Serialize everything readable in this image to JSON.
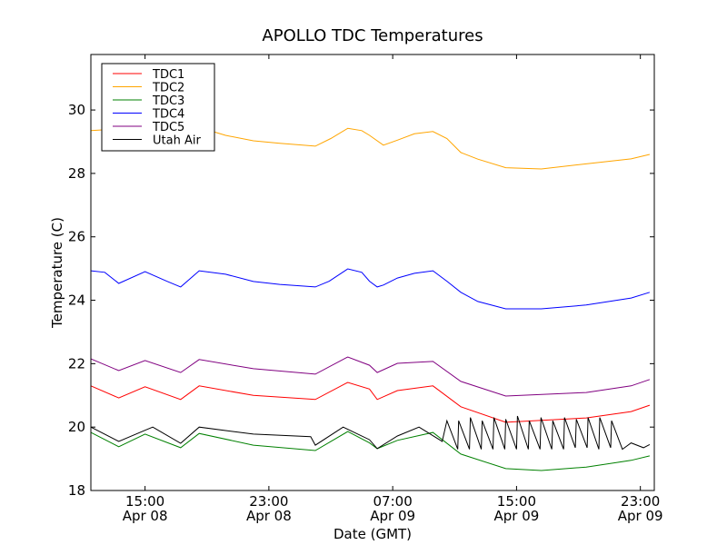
{
  "chart_data": {
    "type": "line",
    "title": "APOLLO TDC Temperatures",
    "xlabel": "Date (GMT)",
    "ylabel": "Temperature (C)",
    "x_units": "hours since Apr 08 00:00 GMT",
    "xlim": [
      11.5,
      47.9
    ],
    "ylim": [
      18,
      31.75
    ],
    "grid": false,
    "legend_position": "top-left",
    "xticks": [
      {
        "value": 15,
        "time": "15:00",
        "date": "Apr 08"
      },
      {
        "value": 23,
        "time": "23:00",
        "date": "Apr 08"
      },
      {
        "value": 31,
        "time": "07:00",
        "date": "Apr 09"
      },
      {
        "value": 39,
        "time": "15:00",
        "date": "Apr 09"
      },
      {
        "value": 47,
        "time": "23:00",
        "date": "Apr 09"
      }
    ],
    "yticks": [
      18,
      20,
      22,
      24,
      26,
      28,
      30
    ],
    "series": [
      {
        "name": "TDC1",
        "color": "#ff0000",
        "x": [
          11.5,
          13.3,
          15,
          17.3,
          18.5,
          22,
          26,
          28.1,
          29.5,
          30,
          31.3,
          33.6,
          35.4,
          38.3,
          43.5,
          46.4,
          47.6
        ],
        "y": [
          21.3,
          20.92,
          21.27,
          20.87,
          21.3,
          21.0,
          20.87,
          21.41,
          21.2,
          20.87,
          21.15,
          21.3,
          20.64,
          20.15,
          20.29,
          20.49,
          20.69
        ]
      },
      {
        "name": "TDC2",
        "color": "#ffa500",
        "x": [
          11.5,
          13.3,
          15,
          17.3,
          18.5,
          20.2,
          22,
          23.7,
          26,
          27,
          28.1,
          29,
          29.5,
          30.4,
          31.3,
          32.4,
          33.6,
          34.5,
          35.4,
          36.5,
          38.3,
          40.6,
          43.5,
          46.4,
          47.6
        ],
        "y": [
          29.35,
          29.4,
          29.5,
          29.5,
          29.45,
          29.2,
          29.03,
          28.95,
          28.86,
          29.1,
          29.42,
          29.35,
          29.2,
          28.89,
          29.05,
          29.25,
          29.32,
          29.1,
          28.66,
          28.45,
          28.18,
          28.14,
          28.3,
          28.46,
          28.6
        ]
      },
      {
        "name": "TDC3",
        "color": "#008000",
        "x": [
          11.5,
          13.3,
          15,
          17.3,
          18.5,
          22,
          26,
          28.1,
          29.5,
          30,
          31.3,
          33.6,
          35.4,
          38.3,
          40.6,
          43.5,
          46.4,
          47.6
        ],
        "y": [
          19.83,
          19.38,
          19.78,
          19.35,
          19.8,
          19.43,
          19.26,
          19.86,
          19.5,
          19.32,
          19.58,
          19.83,
          19.15,
          18.69,
          18.63,
          18.74,
          18.95,
          19.09
        ]
      },
      {
        "name": "TDC4",
        "color": "#0000ff",
        "x": [
          11.5,
          12.4,
          13.3,
          15,
          16.4,
          17.3,
          18.5,
          20.2,
          22,
          23.7,
          26,
          26.9,
          28.1,
          29,
          29.5,
          30,
          30.4,
          31.3,
          32.4,
          33.6,
          34.5,
          35.4,
          36.5,
          38.3,
          40.6,
          43.5,
          46.4,
          47.6
        ],
        "y": [
          24.93,
          24.88,
          24.53,
          24.9,
          24.6,
          24.42,
          24.93,
          24.82,
          24.59,
          24.5,
          24.42,
          24.6,
          24.99,
          24.88,
          24.6,
          24.42,
          24.48,
          24.7,
          24.85,
          24.93,
          24.6,
          24.25,
          23.96,
          23.73,
          23.73,
          23.85,
          24.07,
          24.25
        ]
      },
      {
        "name": "TDC5",
        "color": "#800080",
        "x": [
          11.5,
          13.3,
          15,
          17.3,
          18.5,
          22,
          26,
          28.1,
          29.5,
          30,
          31.3,
          33.6,
          35.4,
          38.3,
          43.5,
          46.4,
          47.6
        ],
        "y": [
          22.15,
          21.78,
          22.1,
          21.72,
          22.13,
          21.84,
          21.67,
          22.21,
          21.95,
          21.72,
          22.01,
          22.07,
          21.44,
          20.98,
          21.09,
          21.3,
          21.5
        ]
      },
      {
        "name": "Utah Air",
        "color": "#000000",
        "x": [
          11.5,
          13.3,
          15,
          15.5,
          17.3,
          18.5,
          22,
          25.7,
          26,
          27.8,
          29.5,
          30,
          31.3,
          32.7,
          34.2,
          34.5,
          35.2,
          35.26,
          35.96,
          36.02,
          36.72,
          36.78,
          37.48,
          37.54,
          38.24,
          38.3,
          39.0,
          39.06,
          39.76,
          39.82,
          40.52,
          40.58,
          41.28,
          41.34,
          42.04,
          42.1,
          42.8,
          42.86,
          43.56,
          43.62,
          44.32,
          44.38,
          45.08,
          45.14,
          45.84,
          46.4,
          47.2,
          47.6
        ],
        "y": [
          20.0,
          19.55,
          19.9,
          20.0,
          19.49,
          20.0,
          19.78,
          19.7,
          19.43,
          20.0,
          19.6,
          19.32,
          19.72,
          20.0,
          19.55,
          20.2,
          19.3,
          20.2,
          19.3,
          20.3,
          19.3,
          20.2,
          19.3,
          20.3,
          19.3,
          20.25,
          19.3,
          20.35,
          19.3,
          20.2,
          19.3,
          20.3,
          19.3,
          20.2,
          19.3,
          20.3,
          19.35,
          20.25,
          19.35,
          20.3,
          19.3,
          20.3,
          19.35,
          20.2,
          19.3,
          19.5,
          19.35,
          19.45
        ]
      }
    ]
  }
}
